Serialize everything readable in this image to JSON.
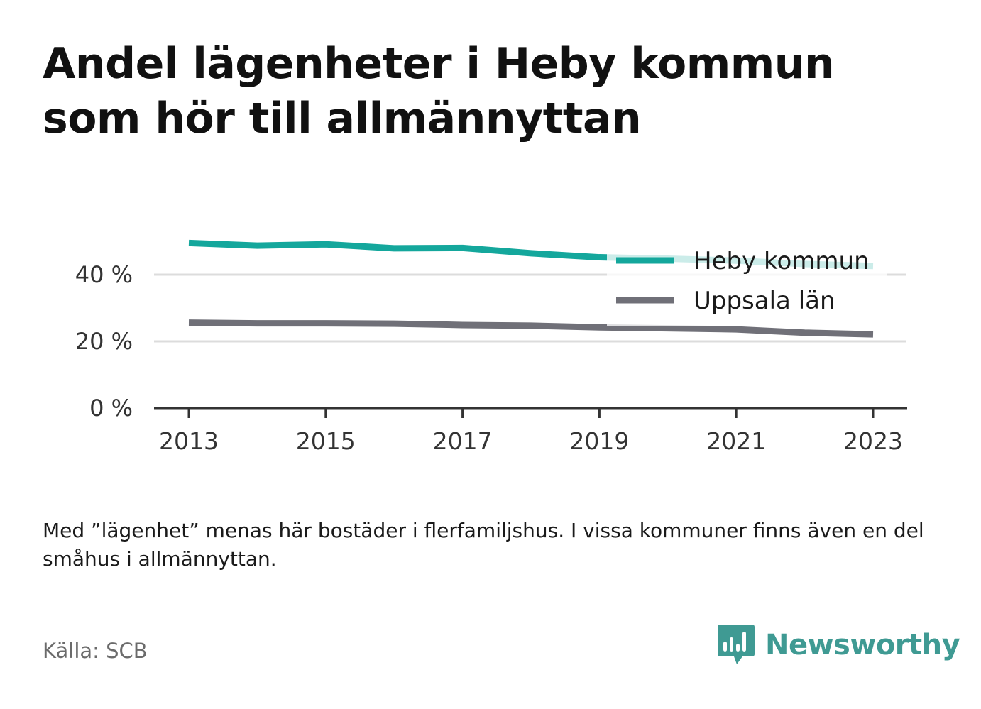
{
  "header": {
    "title": "Andel lägenheter i Heby kommun som hör till allmännyttan"
  },
  "footer": {
    "note": "Med ”lägenhet” menas här bostäder i flerfamiljshus. I vissa kommuner finns även en del småhus i allmännyttan.",
    "source": "Källa: SCB",
    "brand": "Newsworthy",
    "brand_icon": "bar-chart-speech-bubble-icon",
    "brand_color": "#3f9a93"
  },
  "chart_data": {
    "type": "line",
    "x": [
      2013,
      2014,
      2015,
      2016,
      2017,
      2018,
      2019,
      2020,
      2021,
      2022,
      2023
    ],
    "xticks": [
      "2013",
      "2015",
      "2017",
      "2019",
      "2021",
      "2023"
    ],
    "yticks": [
      "0 %",
      "20 %",
      "40 %"
    ],
    "ylim": [
      0,
      55
    ],
    "grid": true,
    "legend": "top-right",
    "series": [
      {
        "name": "Heby kommun",
        "color": "#14a79c",
        "values": [
          49.5,
          48.7,
          49.1,
          47.9,
          48.0,
          46.4,
          45.2,
          44.8,
          44.2,
          43.2,
          42.6
        ]
      },
      {
        "name": "Uppsala län",
        "color": "#707078",
        "values": [
          25.6,
          25.4,
          25.4,
          25.3,
          24.9,
          24.7,
          24.2,
          23.9,
          23.6,
          22.6,
          22.1
        ]
      }
    ]
  }
}
